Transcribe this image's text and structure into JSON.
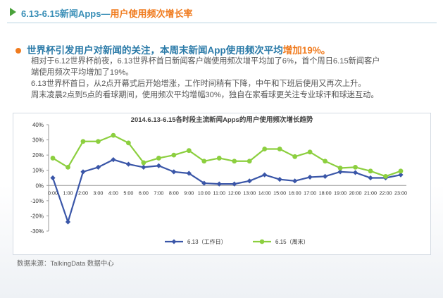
{
  "header": {
    "title_main": "6.13-6.15新闻Apps",
    "title_sep": "—",
    "title_sub": "用户使用频次增长率"
  },
  "headline": {
    "text": "世界杯引发用户对新闻的关注，本周末新闻App使用频次平均",
    "highlight": "增加19%。"
  },
  "body_lines": [
    "相对于6.12世界杯前夜，6.13世界杯首日新闻客户端使用频次增平均加了6%，首个周日6.15新闻客户",
    "端使用频次平均增加了19%。",
    "6.13世界杯首日，从2点开幕式后开始增涨，工作时间稍有下降，中午和下班后使用又再次上升。",
    "周末凌晨2点到5点的看球期间，使用频次平均增幅30%，独自在家看球更关注专业球评和球迷互动。"
  ],
  "source": "数据来源：TalkingData 数据中心",
  "colors": {
    "series_1": "#3a56a8",
    "series_2": "#8ccf3f",
    "header_blue": "#3a8fb7",
    "accent_orange": "#f07b1e"
  },
  "chart_data": {
    "type": "line",
    "title": "2014.6.13-6.15各时段主流新闻Apps的用户使用频次增长趋势",
    "categories": [
      "0:00",
      "1:00",
      "2:00",
      "3:00",
      "4:00",
      "5:00",
      "6:00",
      "7:00",
      "8:00",
      "9:00",
      "10:00",
      "11:00",
      "12:00",
      "13:00",
      "14:00",
      "15:00",
      "16:00",
      "17:00",
      "18:00",
      "19:00",
      "20:00",
      "21:00",
      "22:00",
      "23:00"
    ],
    "y_ticks": [
      "40%",
      "30%",
      "20%",
      "10%",
      "0%",
      "-10%",
      "-20%",
      "-30%"
    ],
    "ylim": [
      -30,
      40
    ],
    "grid": false,
    "legend_position": "bottom",
    "series": [
      {
        "name": "6.13（工作日）",
        "values": [
          5,
          -24,
          9,
          12,
          17,
          14,
          12,
          13,
          9,
          8,
          1.5,
          1,
          1,
          3,
          7,
          4,
          3,
          5.5,
          6,
          9,
          8.5,
          5,
          5,
          7
        ]
      },
      {
        "name": "6.15（周末）",
        "values": [
          18,
          12,
          29,
          29,
          33,
          28,
          15,
          18,
          20,
          23,
          16,
          18,
          16,
          16,
          24,
          24,
          19,
          22,
          16,
          11.5,
          12,
          9.5,
          6,
          9.5
        ]
      }
    ]
  }
}
